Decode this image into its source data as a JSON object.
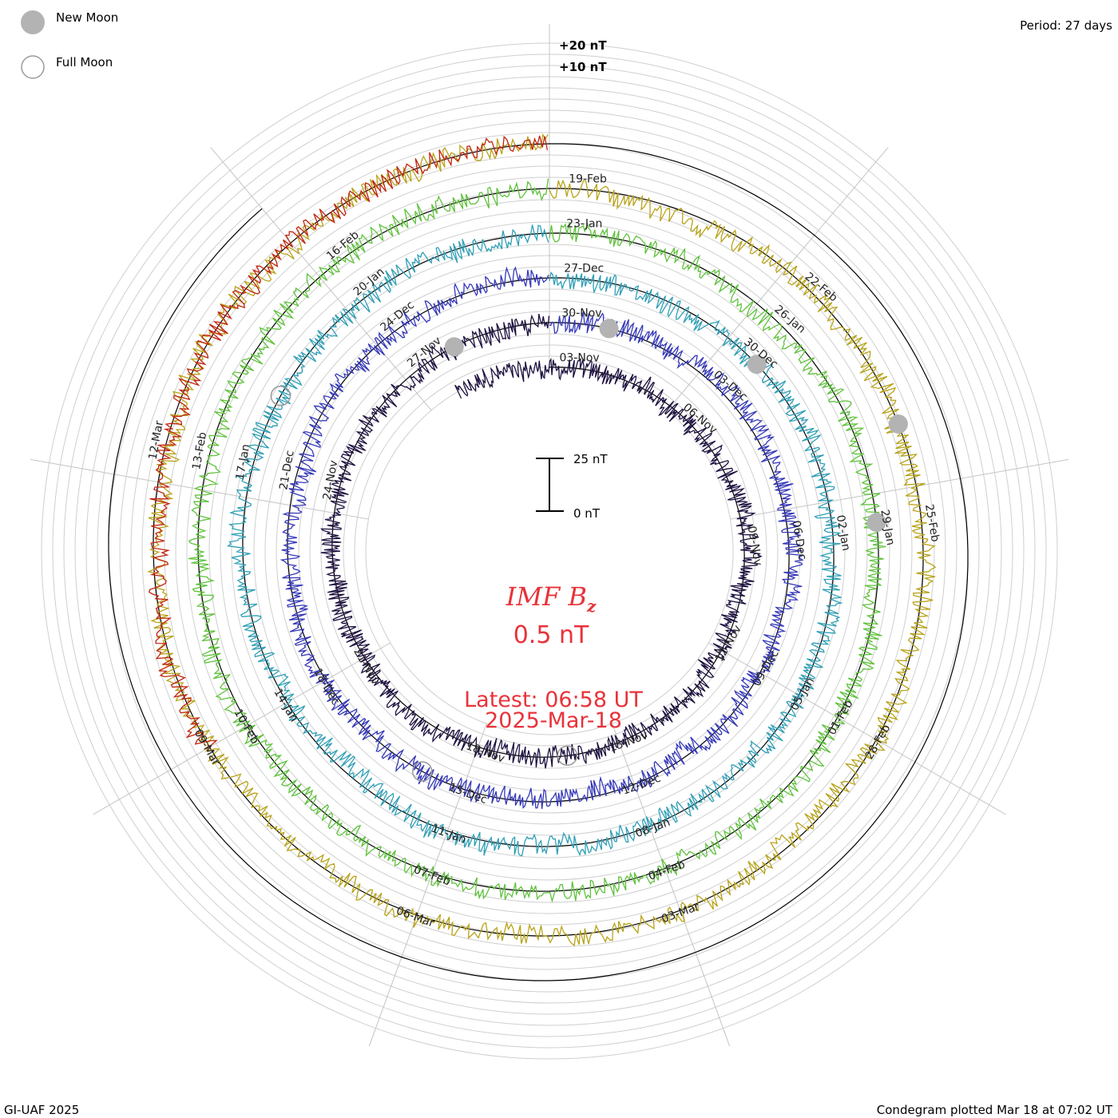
{
  "legend": {
    "new_moon_label": "New Moon",
    "full_moon_label": "Full Moon",
    "new_moon_color": "#b3b3b3",
    "full_moon_color": "#9a9a9a"
  },
  "period_label": "Period: 27 days",
  "footer_left": "GI-UAF 2025",
  "footer_right": "Condegram plotted Mar 18 at 07:02 UT",
  "center": {
    "title_main": "IMF B",
    "title_sub": "z",
    "value": "0.5 nT",
    "latest_line1": "Latest: 06:58 UT",
    "latest_line2": "2025-Mar-18",
    "scale_top": "25 nT",
    "scale_bottom": "0 nT",
    "text_color": "#e8333a"
  },
  "chart_data": {
    "type": "line",
    "title": "IMF B",
    "period_days": 27,
    "baseline_labels": [
      "+20 nT",
      "+10 nT"
    ],
    "cycles": [
      {
        "color": "#1e1040",
        "dates": [
          "03-Nov",
          "06-Nov",
          "09-Nov",
          "12-Nov",
          "15-Nov",
          "18-Nov",
          "21-Nov",
          "24-Nov",
          "27-Nov"
        ],
        "date_angles": [
          0,
          40,
          80,
          120,
          160,
          200,
          240,
          280,
          320
        ]
      },
      {
        "color": "#3538b8",
        "dates": [
          "30-Nov",
          "03-Dec",
          "06-Dec",
          "09-Dec",
          "12-Dec",
          "15-Dec",
          "18-Dec",
          "21-Dec",
          "24-Dec"
        ],
        "date_angles": [
          0,
          40,
          80,
          120,
          160,
          200,
          240,
          280,
          320
        ]
      },
      {
        "color": "#2f9fb6",
        "dates": [
          "27-Dec",
          "30-Dec",
          "02-Jan",
          "05-Jan",
          "08-Jan",
          "11-Jan",
          "14-Jan",
          "17-Jan",
          "20-Jan"
        ],
        "date_angles": [
          0,
          40,
          80,
          120,
          160,
          200,
          240,
          280,
          320
        ]
      },
      {
        "color": "#5fc23c",
        "dates": [
          "23-Jan",
          "26-Jan",
          "29-Jan",
          "01-Feb",
          "04-Feb",
          "07-Feb",
          "10-Feb",
          "13-Feb",
          "16-Feb"
        ],
        "date_angles": [
          0,
          40,
          80,
          120,
          160,
          200,
          240,
          280,
          320
        ]
      },
      {
        "color": "#b8a319",
        "dates": [
          "19-Feb",
          "22-Feb",
          "25-Feb",
          "28-Feb",
          "03-Mar",
          "06-Mar",
          "09-Mar",
          "12-Mar"
        ],
        "date_angles": [
          0,
          40,
          80,
          120,
          160,
          200,
          240,
          280
        ]
      },
      {
        "color": "#c0250f",
        "dates": [],
        "date_angles": []
      }
    ],
    "new_moon_angles_deg": [
      335,
      15,
      48,
      85,
      70
    ],
    "full_moon_angles_deg": [
      175,
      210,
      300
    ]
  }
}
